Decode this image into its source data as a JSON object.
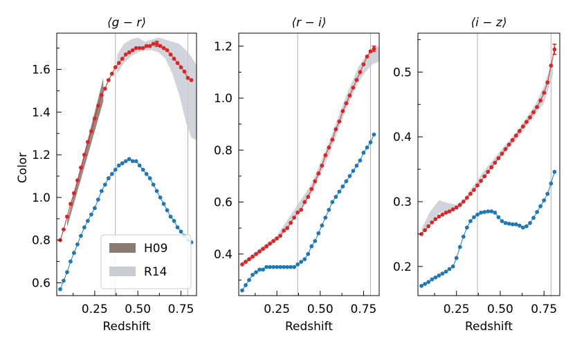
{
  "figure": {
    "ylabel": "Color",
    "legend": [
      {
        "label": "H09",
        "color": "#8c7b73"
      },
      {
        "label": "R14",
        "color": "#c9cdd3"
      }
    ],
    "colors": {
      "red": "#d62728",
      "blue": "#1f77b4",
      "band": "#c9cdd3",
      "h09": "#8c7b73",
      "vline": "#b0b0b0"
    }
  },
  "chart_data": [
    {
      "type": "line",
      "title": "⟨g − r⟩",
      "xlabel": "Redshift",
      "ylabel": "Color",
      "xlim": [
        0.03,
        0.84
      ],
      "ylim": [
        0.54,
        1.77
      ],
      "xticks": [
        0.25,
        0.5,
        0.75
      ],
      "xtick_labels": [
        "0.25",
        "0.50",
        "0.75"
      ],
      "yticks": [
        0.6,
        0.8,
        1.0,
        1.2,
        1.4,
        1.6
      ],
      "ytick_labels": [
        "0.6",
        "0.8",
        "1.0",
        "1.2",
        "1.4",
        "1.6"
      ],
      "vlines": [
        0.37,
        0.79
      ],
      "legend_position": "lower-right",
      "series": [
        {
          "name": "red",
          "color": "#d62728",
          "x": [
            0.05,
            0.07,
            0.09,
            0.11,
            0.13,
            0.15,
            0.17,
            0.19,
            0.21,
            0.23,
            0.25,
            0.27,
            0.29,
            0.31,
            0.33,
            0.35,
            0.37,
            0.39,
            0.41,
            0.43,
            0.45,
            0.47,
            0.49,
            0.51,
            0.53,
            0.55,
            0.57,
            0.59,
            0.61,
            0.63,
            0.65,
            0.67,
            0.69,
            0.71,
            0.73,
            0.75,
            0.77,
            0.79,
            0.81
          ],
          "y": [
            0.8,
            0.85,
            0.91,
            0.97,
            1.02,
            1.08,
            1.14,
            1.2,
            1.26,
            1.31,
            1.37,
            1.43,
            1.48,
            1.51,
            1.55,
            1.58,
            1.61,
            1.63,
            1.65,
            1.67,
            1.68,
            1.69,
            1.7,
            1.7,
            1.7,
            1.71,
            1.71,
            1.72,
            1.72,
            1.71,
            1.7,
            1.69,
            1.67,
            1.65,
            1.63,
            1.61,
            1.59,
            1.56,
            1.55
          ]
        },
        {
          "name": "blue",
          "color": "#1f77b4",
          "x": [
            0.05,
            0.07,
            0.09,
            0.11,
            0.13,
            0.15,
            0.17,
            0.19,
            0.21,
            0.23,
            0.25,
            0.27,
            0.29,
            0.31,
            0.33,
            0.35,
            0.37,
            0.39,
            0.41,
            0.43,
            0.45,
            0.47,
            0.49,
            0.51,
            0.53,
            0.55,
            0.57,
            0.59,
            0.61,
            0.63,
            0.65,
            0.67,
            0.69,
            0.71,
            0.73,
            0.75,
            0.77,
            0.79,
            0.81
          ],
          "y": [
            0.57,
            0.61,
            0.65,
            0.7,
            0.74,
            0.78,
            0.82,
            0.86,
            0.89,
            0.92,
            0.95,
            0.99,
            1.03,
            1.06,
            1.09,
            1.11,
            1.13,
            1.15,
            1.16,
            1.17,
            1.18,
            1.17,
            1.17,
            1.15,
            1.13,
            1.11,
            1.09,
            1.06,
            1.03,
            1.0,
            0.97,
            0.94,
            0.91,
            0.89,
            0.86,
            0.84,
            0.82,
            0.8,
            0.79
          ]
        }
      ],
      "h09_band": {
        "x": [
          0.09,
          0.3
        ],
        "lower": [
          0.86,
          1.45
        ],
        "upper": [
          0.89,
          1.56
        ]
      },
      "r14_band": {
        "x": [
          0.38,
          0.42,
          0.46,
          0.5,
          0.54,
          0.58,
          0.62,
          0.66,
          0.7,
          0.74,
          0.78,
          0.81,
          0.84
        ],
        "lower": [
          1.58,
          1.63,
          1.66,
          1.68,
          1.69,
          1.69,
          1.68,
          1.65,
          1.58,
          1.48,
          1.35,
          1.28,
          1.27
        ],
        "upper": [
          1.67,
          1.72,
          1.74,
          1.75,
          1.73,
          1.74,
          1.75,
          1.74,
          1.73,
          1.72,
          1.69,
          1.66,
          1.62
        ]
      },
      "errorbar": {
        "x": 0.61,
        "y": 1.72,
        "err": 0.012
      }
    },
    {
      "type": "line",
      "title": "⟨r − i⟩",
      "xlabel": "Redshift",
      "xlim": [
        0.03,
        0.84
      ],
      "ylim": [
        0.24,
        1.25
      ],
      "xticks": [
        0.25,
        0.5,
        0.75
      ],
      "xtick_labels": [
        "0.25",
        "0.50",
        "0.75"
      ],
      "yticks": [
        0.4,
        0.6,
        0.8,
        1.0,
        1.2
      ],
      "ytick_labels": [
        "0.4",
        "0.6",
        "0.8",
        "1.0",
        "1.2"
      ],
      "vlines": [
        0.37,
        0.79
      ],
      "series": [
        {
          "name": "red",
          "color": "#d62728",
          "x": [
            0.05,
            0.07,
            0.09,
            0.11,
            0.13,
            0.15,
            0.17,
            0.19,
            0.21,
            0.23,
            0.25,
            0.27,
            0.29,
            0.31,
            0.33,
            0.35,
            0.37,
            0.39,
            0.41,
            0.43,
            0.45,
            0.47,
            0.49,
            0.51,
            0.53,
            0.55,
            0.57,
            0.59,
            0.61,
            0.63,
            0.65,
            0.67,
            0.69,
            0.71,
            0.73,
            0.75,
            0.77,
            0.79,
            0.81
          ],
          "y": [
            0.36,
            0.37,
            0.38,
            0.39,
            0.4,
            0.41,
            0.42,
            0.43,
            0.44,
            0.45,
            0.46,
            0.47,
            0.49,
            0.5,
            0.52,
            0.54,
            0.56,
            0.57,
            0.6,
            0.62,
            0.65,
            0.68,
            0.71,
            0.74,
            0.78,
            0.81,
            0.84,
            0.88,
            0.91,
            0.95,
            0.98,
            1.01,
            1.04,
            1.07,
            1.1,
            1.13,
            1.16,
            1.18,
            1.19
          ]
        },
        {
          "name": "blue",
          "color": "#1f77b4",
          "x": [
            0.05,
            0.07,
            0.09,
            0.11,
            0.13,
            0.15,
            0.17,
            0.19,
            0.21,
            0.23,
            0.25,
            0.27,
            0.29,
            0.31,
            0.33,
            0.35,
            0.37,
            0.39,
            0.41,
            0.43,
            0.45,
            0.47,
            0.49,
            0.51,
            0.53,
            0.55,
            0.57,
            0.59,
            0.61,
            0.63,
            0.65,
            0.67,
            0.69,
            0.71,
            0.73,
            0.75,
            0.77,
            0.79,
            0.81
          ],
          "y": [
            0.26,
            0.28,
            0.3,
            0.32,
            0.33,
            0.34,
            0.34,
            0.35,
            0.35,
            0.35,
            0.35,
            0.35,
            0.35,
            0.35,
            0.35,
            0.35,
            0.36,
            0.37,
            0.38,
            0.4,
            0.43,
            0.45,
            0.48,
            0.51,
            0.54,
            0.57,
            0.6,
            0.62,
            0.64,
            0.66,
            0.68,
            0.7,
            0.72,
            0.74,
            0.76,
            0.79,
            0.81,
            0.83,
            0.86
          ]
        }
      ],
      "r14_band": {
        "x": [
          0.05,
          0.15,
          0.25,
          0.35,
          0.45,
          0.55,
          0.65,
          0.72,
          0.76,
          0.8,
          0.84
        ],
        "lower": [
          0.35,
          0.4,
          0.45,
          0.54,
          0.63,
          0.78,
          0.96,
          1.06,
          1.1,
          1.13,
          1.14
        ],
        "upper": [
          0.37,
          0.42,
          0.47,
          0.57,
          0.67,
          0.83,
          1.01,
          1.12,
          1.16,
          1.19,
          1.2
        ]
      },
      "errorbar": {
        "x": 0.81,
        "y": 1.19,
        "err": 0.01
      }
    },
    {
      "type": "line",
      "title": "⟨i − z⟩",
      "xlabel": "Redshift",
      "xlim": [
        0.03,
        0.84
      ],
      "ylim": [
        0.155,
        0.56
      ],
      "xticks": [
        0.25,
        0.5,
        0.75
      ],
      "xtick_labels": [
        "0.25",
        "0.50",
        "0.75"
      ],
      "yticks": [
        0.2,
        0.3,
        0.4,
        0.5
      ],
      "ytick_labels": [
        "0.2",
        "0.3",
        "0.4",
        "0.5"
      ],
      "vlines": [
        0.37,
        0.79
      ],
      "series": [
        {
          "name": "red",
          "color": "#d62728",
          "x": [
            0.05,
            0.07,
            0.09,
            0.11,
            0.13,
            0.15,
            0.17,
            0.19,
            0.21,
            0.23,
            0.25,
            0.27,
            0.29,
            0.31,
            0.33,
            0.35,
            0.37,
            0.39,
            0.41,
            0.43,
            0.45,
            0.47,
            0.49,
            0.51,
            0.53,
            0.55,
            0.57,
            0.59,
            0.61,
            0.63,
            0.65,
            0.67,
            0.69,
            0.71,
            0.73,
            0.75,
            0.77,
            0.79,
            0.81
          ],
          "y": [
            0.25,
            0.256,
            0.262,
            0.268,
            0.273,
            0.277,
            0.28,
            0.283,
            0.285,
            0.288,
            0.291,
            0.295,
            0.3,
            0.306,
            0.312,
            0.318,
            0.325,
            0.332,
            0.339,
            0.346,
            0.353,
            0.36,
            0.367,
            0.374,
            0.381,
            0.388,
            0.395,
            0.402,
            0.409,
            0.416,
            0.423,
            0.43,
            0.438,
            0.446,
            0.456,
            0.468,
            0.484,
            0.51,
            0.535
          ]
        },
        {
          "name": "blue",
          "color": "#1f77b4",
          "x": [
            0.05,
            0.07,
            0.09,
            0.11,
            0.13,
            0.15,
            0.17,
            0.19,
            0.21,
            0.23,
            0.25,
            0.27,
            0.29,
            0.31,
            0.33,
            0.35,
            0.37,
            0.39,
            0.41,
            0.43,
            0.45,
            0.47,
            0.49,
            0.51,
            0.53,
            0.55,
            0.57,
            0.59,
            0.61,
            0.63,
            0.65,
            0.67,
            0.69,
            0.71,
            0.73,
            0.75,
            0.77,
            0.79,
            0.81
          ],
          "y": [
            0.17,
            0.173,
            0.176,
            0.18,
            0.183,
            0.186,
            0.189,
            0.192,
            0.196,
            0.2,
            0.213,
            0.23,
            0.246,
            0.26,
            0.27,
            0.276,
            0.28,
            0.283,
            0.284,
            0.285,
            0.285,
            0.283,
            0.276,
            0.27,
            0.267,
            0.266,
            0.265,
            0.265,
            0.263,
            0.26,
            0.262,
            0.267,
            0.275,
            0.284,
            0.293,
            0.302,
            0.312,
            0.328,
            0.346
          ]
        }
      ],
      "r14_band": {
        "x": [
          0.05,
          0.1,
          0.15,
          0.2,
          0.25,
          0.3,
          0.4,
          0.5,
          0.6,
          0.7,
          0.75,
          0.8
        ],
        "lower": [
          0.25,
          0.268,
          0.282,
          0.285,
          0.289,
          0.3,
          0.338,
          0.368,
          0.398,
          0.435,
          0.452,
          0.495
        ],
        "upper": [
          0.258,
          0.285,
          0.302,
          0.298,
          0.295,
          0.306,
          0.345,
          0.378,
          0.41,
          0.45,
          0.478,
          0.52
        ]
      },
      "errorbar": {
        "x": 0.81,
        "y": 0.535,
        "err": 0.008
      }
    }
  ]
}
